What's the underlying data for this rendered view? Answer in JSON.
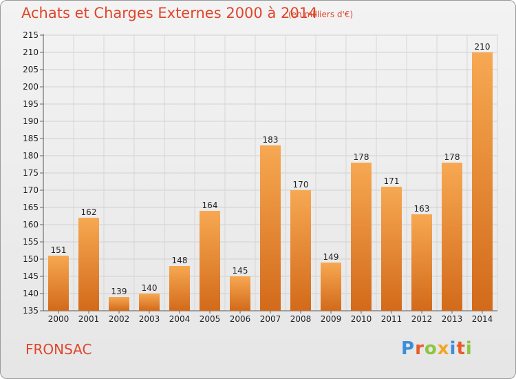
{
  "header": {
    "title": "Achats et Charges Externes 2000 à 2014",
    "unit": "(en milliers d'€)"
  },
  "footer": {
    "place": "FRONSAC",
    "logo": "Proxiti",
    "logo_colors": [
      "#3a8fd9",
      "#e85b2a",
      "#8bc63f",
      "#f1a623",
      "#3a8fd9",
      "#e85b2a",
      "#8bc63f"
    ]
  },
  "colors": {
    "bar_light": "#f6a550",
    "bar_dark": "#d86e1c",
    "title": "#e0452a"
  },
  "chart_data": {
    "type": "bar",
    "title": "Achats et Charges Externes 2000 à 2014",
    "subtitle": "(en milliers d'€)",
    "categories": [
      "2000",
      "2001",
      "2002",
      "2003",
      "2004",
      "2005",
      "2006",
      "2007",
      "2008",
      "2009",
      "2010",
      "2011",
      "2012",
      "2013",
      "2014"
    ],
    "values": [
      151,
      162,
      139,
      140,
      148,
      164,
      145,
      183,
      170,
      149,
      178,
      171,
      163,
      178,
      210
    ],
    "ylim": [
      135,
      215
    ],
    "yticks": [
      135,
      140,
      145,
      150,
      155,
      160,
      165,
      170,
      175,
      180,
      185,
      190,
      195,
      200,
      205,
      210,
      215
    ],
    "grid": true,
    "data_labels": true,
    "legend": "none"
  }
}
